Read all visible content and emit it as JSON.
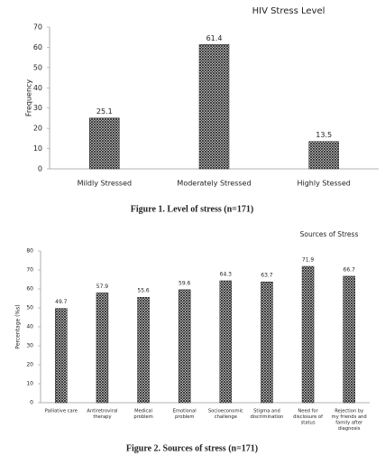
{
  "chart_data": [
    {
      "type": "bar",
      "title": "HIV Stress Level",
      "caption": "Figure 1. Level of stress (n=171)",
      "y_label": "Frequency",
      "categories": [
        [
          "Mildly Stressed"
        ],
        [
          "Moderately Stressed"
        ],
        [
          "Highly Stessed"
        ]
      ],
      "values": [
        25.1,
        61.4,
        13.5
      ],
      "color": "#222222",
      "ylim": [
        0,
        70
      ],
      "yticks": [
        0,
        10,
        20,
        30,
        40,
        50,
        60,
        70
      ],
      "grid": false
    },
    {
      "type": "bar",
      "title": "Sources of Stress",
      "caption": "Figure 2. Sources of stress (n=171)",
      "y_label": "Percentage (%s)",
      "categories": [
        [
          "Palliative care"
        ],
        [
          "Antiretroviral",
          "therapy"
        ],
        [
          "Medical",
          "problem"
        ],
        [
          "Emotional",
          "problem"
        ],
        [
          "Socioeconomic",
          "challenge"
        ],
        [
          "Stigma and",
          "discrimination"
        ],
        [
          "Need for",
          "disclosure of",
          "status"
        ],
        [
          "Rejection by",
          "my friends and",
          "family after",
          "diagnosis"
        ]
      ],
      "values": [
        49.7,
        57.9,
        55.6,
        59.6,
        64.3,
        63.7,
        71.9,
        66.7
      ],
      "color": "#222222",
      "ylim": [
        0,
        80
      ],
      "yticks": [
        0,
        10,
        20,
        30,
        40,
        50,
        60,
        70,
        80
      ],
      "grid": false
    }
  ]
}
